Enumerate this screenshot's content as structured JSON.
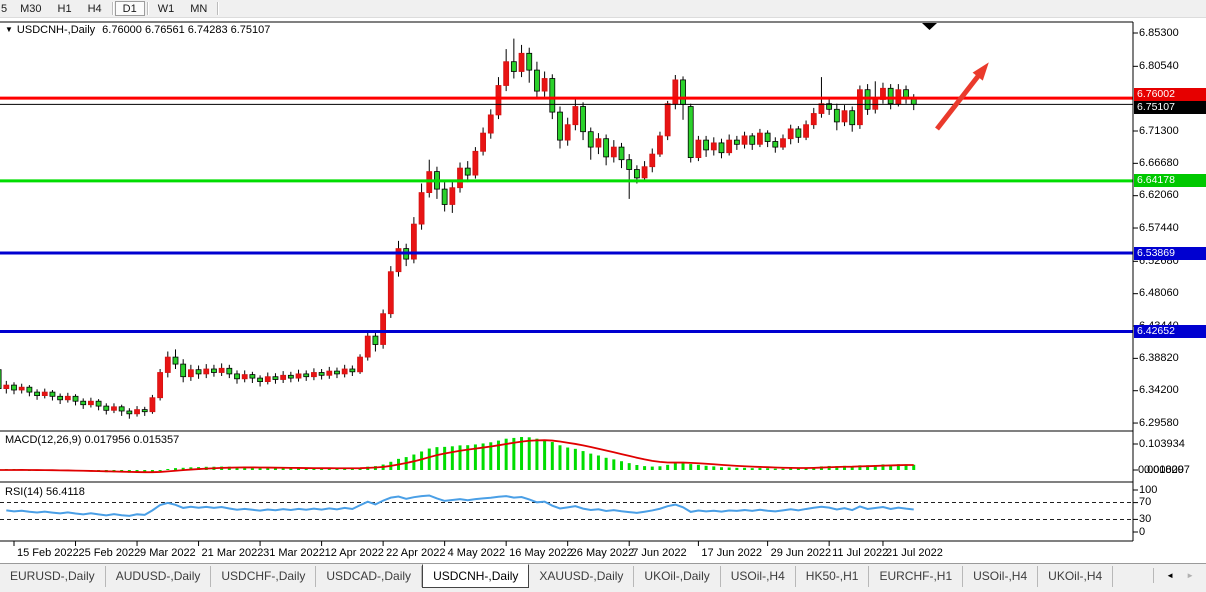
{
  "toolbar": {
    "buttons": [
      {
        "label": "5",
        "partial": true
      },
      {
        "label": "M30"
      },
      {
        "label": "H1"
      },
      {
        "label": "H4"
      },
      {
        "label": "D1",
        "active": true
      },
      {
        "label": "W1"
      },
      {
        "label": "MN"
      }
    ]
  },
  "chart": {
    "title": {
      "icon": "▼",
      "symbol_label": "USDCNH-,Daily",
      "ohlc": "6.76000 6.76561 6.74283 6.75107"
    },
    "colors": {
      "bull": "#e81414",
      "bull_border": "#d51212",
      "bear": "#2bd12b",
      "bear_border": "#000000",
      "wick": "#000000",
      "macd_hist": "#00dd00",
      "macd_signal": "#e00000",
      "rsi_line": "#4a9fe6",
      "arrow": "#ea3a2c"
    },
    "price_axis": {
      "ticks": [
        "6.85300",
        "6.80540",
        "6.71300",
        "6.66680",
        "6.62060",
        "6.57440",
        "6.52680",
        "6.48060",
        "6.43440",
        "6.38820",
        "6.34200",
        "6.29580"
      ],
      "badges": [
        {
          "value": "6.76002",
          "bg": "#e60000"
        },
        {
          "value": "6.75107",
          "bg": "#000000"
        },
        {
          "value": "6.64178",
          "bg": "#00c800"
        },
        {
          "value": "6.53869",
          "bg": "#0000d0"
        },
        {
          "value": "6.42652",
          "bg": "#0000d0"
        }
      ]
    },
    "hlines": [
      {
        "price": 6.76002,
        "color": "#ff0000",
        "width": 3,
        "name": "resistance-line-red"
      },
      {
        "price": 6.75107,
        "color": "#000000",
        "width": 1,
        "name": "bid-price-line"
      },
      {
        "price": 6.64178,
        "color": "#00dd00",
        "width": 3,
        "name": "support-line-green"
      },
      {
        "price": 6.53869,
        "color": "#0000d0",
        "width": 3,
        "name": "support-line-blue-upper"
      },
      {
        "price": 6.42652,
        "color": "#0000d0",
        "width": 3,
        "name": "support-line-blue-lower"
      }
    ],
    "macd_axis": {
      "max": "0.103934",
      "zero": "0.000000",
      "current": "0.018297"
    },
    "rsi_axis": {
      "labels": [
        "100",
        "70",
        "30",
        "0"
      ]
    }
  },
  "indicator_labels": {
    "macd": "MACD(12,26,9) 0.017956 0.015357",
    "rsi": "RSI(14) 56.4118"
  },
  "chart_data": {
    "type": "candlestick",
    "symbol": "USDCNH",
    "timeframe": "Daily",
    "title": "USDCNH-,Daily",
    "current_ohlc": {
      "open": 6.76,
      "high": 6.76561,
      "low": 6.74283,
      "close": 6.75107
    },
    "ylim": [
      6.27,
      6.869
    ],
    "up_color_meaning": "red = bullish, green = bearish",
    "x_labels": [
      {
        "bar": 0,
        "label": "15 Feb 2022"
      },
      {
        "bar": 8,
        "label": "25 Feb 2022"
      },
      {
        "bar": 16,
        "label": "9 Mar 2022"
      },
      {
        "bar": 24,
        "label": "21 Mar 2022"
      },
      {
        "bar": 32,
        "label": "31 Mar 2022"
      },
      {
        "bar": 40,
        "label": "12 Apr 2022"
      },
      {
        "bar": 48,
        "label": "22 Apr 2022"
      },
      {
        "bar": 56,
        "label": "4 May 2022"
      },
      {
        "bar": 64,
        "label": "16 May 2022"
      },
      {
        "bar": 72,
        "label": "26 May 2022"
      },
      {
        "bar": 80,
        "label": "7 Jun 2022"
      },
      {
        "bar": 89,
        "label": "17 Jun 2022"
      },
      {
        "bar": 98,
        "label": "29 Jun 2022"
      },
      {
        "bar": 106,
        "label": "11 Jul 2022"
      },
      {
        "bar": 113,
        "label": "21 Jul 2022"
      }
    ],
    "ohlc": [
      [
        6.372,
        6.377,
        6.338,
        6.345
      ],
      [
        6.345,
        6.356,
        6.338,
        6.35
      ],
      [
        6.35,
        6.354,
        6.337,
        6.343
      ],
      [
        6.343,
        6.352,
        6.338,
        6.347
      ],
      [
        6.347,
        6.35,
        6.334,
        6.34
      ],
      [
        6.34,
        6.344,
        6.329,
        6.335
      ],
      [
        6.335,
        6.345,
        6.331,
        6.34
      ],
      [
        6.34,
        6.343,
        6.328,
        6.334
      ],
      [
        6.334,
        6.338,
        6.323,
        6.329
      ],
      [
        6.329,
        6.339,
        6.325,
        6.334
      ],
      [
        6.334,
        6.337,
        6.321,
        6.327
      ],
      [
        6.327,
        6.331,
        6.316,
        6.322
      ],
      [
        6.322,
        6.332,
        6.318,
        6.327
      ],
      [
        6.327,
        6.33,
        6.314,
        6.32
      ],
      [
        6.32,
        6.324,
        6.308,
        6.314
      ],
      [
        6.314,
        6.324,
        6.31,
        6.319
      ],
      [
        6.319,
        6.322,
        6.306,
        6.313
      ],
      [
        6.313,
        6.317,
        6.302,
        6.309
      ],
      [
        6.309,
        6.32,
        6.305,
        6.315
      ],
      [
        6.315,
        6.319,
        6.306,
        6.312
      ],
      [
        6.312,
        6.336,
        6.309,
        6.332
      ],
      [
        6.332,
        6.373,
        6.328,
        6.368
      ],
      [
        6.368,
        6.398,
        6.361,
        6.39
      ],
      [
        6.39,
        6.401,
        6.373,
        6.38
      ],
      [
        6.38,
        6.387,
        6.354,
        6.362
      ],
      [
        6.362,
        6.379,
        6.356,
        6.372
      ],
      [
        6.372,
        6.378,
        6.359,
        6.366
      ],
      [
        6.366,
        6.38,
        6.36,
        6.373
      ],
      [
        6.373,
        6.379,
        6.362,
        6.368
      ],
      [
        6.368,
        6.381,
        6.363,
        6.374
      ],
      [
        6.374,
        6.379,
        6.36,
        6.366
      ],
      [
        6.366,
        6.371,
        6.352,
        6.359
      ],
      [
        6.359,
        6.371,
        6.354,
        6.365
      ],
      [
        6.365,
        6.369,
        6.353,
        6.36
      ],
      [
        6.36,
        6.364,
        6.348,
        6.355
      ],
      [
        6.355,
        6.368,
        6.351,
        6.362
      ],
      [
        6.362,
        6.367,
        6.352,
        6.358
      ],
      [
        6.358,
        6.37,
        6.353,
        6.364
      ],
      [
        6.364,
        6.369,
        6.354,
        6.36
      ],
      [
        6.36,
        6.372,
        6.355,
        6.366
      ],
      [
        6.366,
        6.371,
        6.356,
        6.362
      ],
      [
        6.362,
        6.374,
        6.357,
        6.368
      ],
      [
        6.368,
        6.373,
        6.358,
        6.364
      ],
      [
        6.364,
        6.376,
        6.359,
        6.37
      ],
      [
        6.37,
        6.375,
        6.36,
        6.366
      ],
      [
        6.366,
        6.379,
        6.361,
        6.373
      ],
      [
        6.373,
        6.378,
        6.363,
        6.369
      ],
      [
        6.369,
        6.394,
        6.366,
        6.39
      ],
      [
        6.39,
        6.426,
        6.385,
        6.42
      ],
      [
        6.42,
        6.428,
        6.398,
        6.408
      ],
      [
        6.408,
        6.458,
        6.402,
        6.452
      ],
      [
        6.452,
        6.52,
        6.446,
        6.512
      ],
      [
        6.512,
        6.556,
        6.505,
        6.545
      ],
      [
        6.545,
        6.552,
        6.52,
        6.53
      ],
      [
        6.53,
        6.59,
        6.524,
        6.58
      ],
      [
        6.58,
        6.638,
        6.572,
        6.625
      ],
      [
        6.625,
        6.672,
        6.618,
        6.655
      ],
      [
        6.655,
        6.662,
        6.616,
        6.63
      ],
      [
        6.63,
        6.64,
        6.598,
        6.608
      ],
      [
        6.608,
        6.64,
        6.596,
        6.632
      ],
      [
        6.632,
        6.668,
        6.625,
        6.66
      ],
      [
        6.66,
        6.67,
        6.64,
        6.65
      ],
      [
        6.65,
        6.69,
        6.645,
        6.684
      ],
      [
        6.684,
        6.718,
        6.678,
        6.71
      ],
      [
        6.71,
        6.744,
        6.702,
        6.736
      ],
      [
        6.736,
        6.79,
        6.73,
        6.778
      ],
      [
        6.778,
        6.83,
        6.77,
        6.812
      ],
      [
        6.812,
        6.845,
        6.788,
        6.798
      ],
      [
        6.798,
        6.836,
        6.79,
        6.824
      ],
      [
        6.824,
        6.832,
        6.782,
        6.8
      ],
      [
        6.8,
        6.812,
        6.758,
        6.77
      ],
      [
        6.77,
        6.798,
        6.762,
        6.788
      ],
      [
        6.788,
        6.794,
        6.73,
        6.74
      ],
      [
        6.74,
        6.748,
        6.688,
        6.7
      ],
      [
        6.7,
        6.732,
        6.692,
        6.722
      ],
      [
        6.722,
        6.758,
        6.714,
        6.748
      ],
      [
        6.748,
        6.754,
        6.7,
        6.712
      ],
      [
        6.712,
        6.718,
        6.672,
        6.69
      ],
      [
        6.69,
        6.71,
        6.68,
        6.702
      ],
      [
        6.702,
        6.708,
        6.664,
        6.676
      ],
      [
        6.676,
        6.7,
        6.668,
        6.69
      ],
      [
        6.69,
        6.696,
        6.66,
        6.672
      ],
      [
        6.672,
        6.68,
        6.616,
        6.658
      ],
      [
        6.658,
        6.664,
        6.638,
        6.646
      ],
      [
        6.646,
        6.67,
        6.642,
        6.662
      ],
      [
        6.662,
        6.688,
        6.654,
        6.68
      ],
      [
        6.68,
        6.712,
        6.676,
        6.706
      ],
      [
        6.706,
        6.756,
        6.7,
        6.752
      ],
      [
        6.752,
        6.793,
        6.744,
        6.786
      ],
      [
        6.786,
        6.791,
        6.729,
        6.751
      ],
      [
        6.748,
        6.752,
        6.668,
        6.675
      ],
      [
        6.675,
        6.706,
        6.67,
        6.7
      ],
      [
        6.7,
        6.706,
        6.676,
        6.686
      ],
      [
        6.686,
        6.704,
        6.678,
        6.696
      ],
      [
        6.696,
        6.702,
        6.674,
        6.682
      ],
      [
        6.682,
        6.708,
        6.678,
        6.7
      ],
      [
        6.7,
        6.706,
        6.686,
        6.694
      ],
      [
        6.694,
        6.712,
        6.688,
        6.706
      ],
      [
        6.706,
        6.71,
        6.686,
        6.694
      ],
      [
        6.694,
        6.716,
        6.69,
        6.71
      ],
      [
        6.71,
        6.714,
        6.69,
        6.698
      ],
      [
        6.698,
        6.704,
        6.682,
        6.69
      ],
      [
        6.69,
        6.708,
        6.686,
        6.702
      ],
      [
        6.702,
        6.722,
        6.694,
        6.716
      ],
      [
        6.716,
        6.72,
        6.696,
        6.704
      ],
      [
        6.704,
        6.728,
        6.7,
        6.722
      ],
      [
        6.722,
        6.746,
        6.716,
        6.738
      ],
      [
        6.738,
        6.79,
        6.732,
        6.752
      ],
      [
        6.752,
        6.76,
        6.736,
        6.744
      ],
      [
        6.744,
        6.752,
        6.714,
        6.726
      ],
      [
        6.726,
        6.75,
        6.72,
        6.742
      ],
      [
        6.742,
        6.748,
        6.712,
        6.722
      ],
      [
        6.722,
        6.778,
        6.716,
        6.772
      ],
      [
        6.772,
        6.78,
        6.736,
        6.744
      ],
      [
        6.744,
        6.784,
        6.738,
        6.758
      ],
      [
        6.758,
        6.782,
        6.752,
        6.774
      ],
      [
        6.774,
        6.78,
        6.744,
        6.752
      ],
      [
        6.752,
        6.78,
        6.748,
        6.772
      ],
      [
        6.772,
        6.778,
        6.752,
        6.76
      ],
      [
        6.76,
        6.76561,
        6.74283,
        6.75107
      ]
    ],
    "indicators": [
      {
        "name": "MACD",
        "params": [
          12,
          26,
          9
        ],
        "current_main": 0.017956,
        "current_signal": 0.015357,
        "scale_max": 0.103934
      },
      {
        "name": "RSI",
        "params": [
          14
        ],
        "current": 56.4118,
        "levels": [
          70,
          30
        ],
        "scale": [
          0,
          100
        ]
      }
    ]
  },
  "tabs": {
    "items": [
      {
        "label": "EURUSD-,Daily"
      },
      {
        "label": "AUDUSD-,Daily"
      },
      {
        "label": "USDCHF-,Daily"
      },
      {
        "label": "USDCAD-,Daily"
      },
      {
        "label": "USDCNH-,Daily",
        "active": true
      },
      {
        "label": "XAUUSD-,Daily"
      },
      {
        "label": "UKOil-,Daily"
      },
      {
        "label": "USOil-,H4"
      },
      {
        "label": "HK50-,H1"
      },
      {
        "label": "EURCHF-,H1"
      },
      {
        "label": "USOil-,H4"
      },
      {
        "label": "UKOil-,H4"
      }
    ],
    "scroll_left": "◄",
    "scroll_right": "►"
  }
}
